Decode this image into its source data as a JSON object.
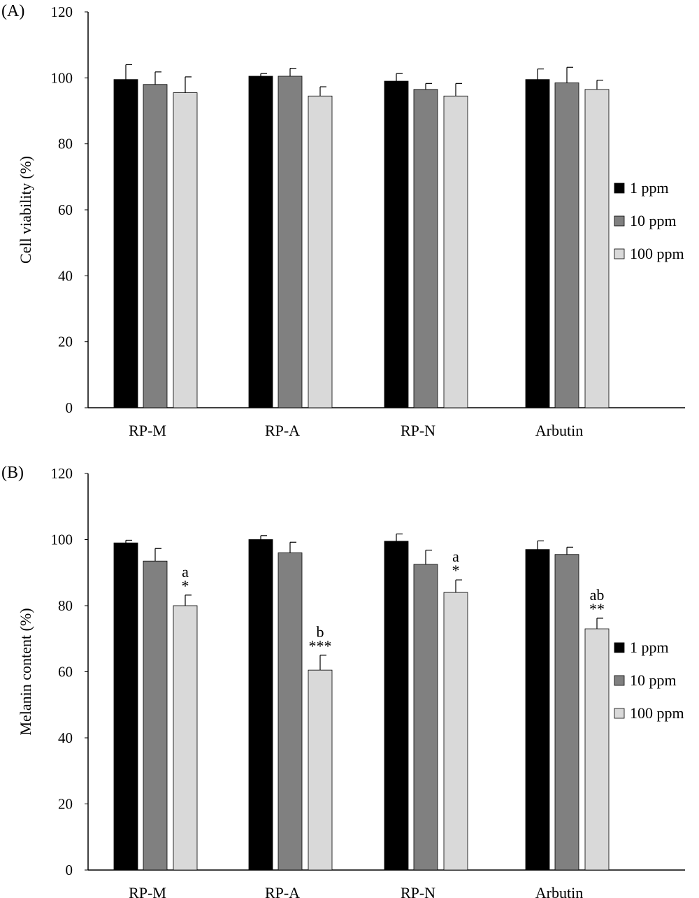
{
  "chart_data": [
    {
      "type": "bar",
      "panel_label": "(A)",
      "title": "",
      "xlabel": "",
      "ylabel": "Cell  viability (%)",
      "ylim": [
        0,
        120
      ],
      "yticks": [
        0,
        20,
        40,
        60,
        80,
        100,
        120
      ],
      "grid": false,
      "legend_position": "right",
      "categories": [
        "RP-M",
        "RP-A",
        "RP-N",
        "Arbutin"
      ],
      "series": [
        {
          "name": "1 ppm",
          "color": "#000000",
          "values": [
            99.5,
            100.5,
            99,
            99.5
          ],
          "errors": [
            4.5,
            0.8,
            2.3,
            3.2
          ]
        },
        {
          "name": "10 ppm",
          "color": "#808080",
          "values": [
            98,
            100.5,
            96.5,
            98.5
          ],
          "errors": [
            3.8,
            2.4,
            1.8,
            4.7
          ]
        },
        {
          "name": "100 ppm",
          "color": "#d9d9d9",
          "values": [
            95.5,
            94.5,
            94.5,
            96.5
          ],
          "errors": [
            4.8,
            2.8,
            3.8,
            2.8
          ]
        }
      ],
      "annotations": []
    },
    {
      "type": "bar",
      "panel_label": "(B)",
      "title": "",
      "xlabel": "",
      "ylabel": "Melanin content (%)",
      "ylim": [
        0,
        120
      ],
      "yticks": [
        0,
        20,
        40,
        60,
        80,
        100,
        120
      ],
      "grid": false,
      "legend_position": "right",
      "categories": [
        "RP-M",
        "RP-A",
        "RP-N",
        "Arbutin"
      ],
      "series": [
        {
          "name": "1 ppm",
          "color": "#000000",
          "values": [
            99,
            100,
            99.5,
            97
          ],
          "errors": [
            0.8,
            1.2,
            2.2,
            2.6
          ]
        },
        {
          "name": "10 ppm",
          "color": "#808080",
          "values": [
            93.5,
            96,
            92.5,
            95.5
          ],
          "errors": [
            3.8,
            3.2,
            4.3,
            2.2
          ]
        },
        {
          "name": "100 ppm",
          "color": "#d9d9d9",
          "values": [
            80,
            60.5,
            84,
            73
          ],
          "errors": [
            3.2,
            4.5,
            3.8,
            3.2
          ]
        }
      ],
      "annotations": [
        {
          "category": "RP-M",
          "series": "100 ppm",
          "letter": "a",
          "stars": "*"
        },
        {
          "category": "RP-A",
          "series": "100 ppm",
          "letter": "b",
          "stars": "***"
        },
        {
          "category": "RP-N",
          "series": "100 ppm",
          "letter": "a",
          "stars": "*"
        },
        {
          "category": "Arbutin",
          "series": "100 ppm",
          "letter": "ab",
          "stars": "**"
        }
      ]
    }
  ]
}
